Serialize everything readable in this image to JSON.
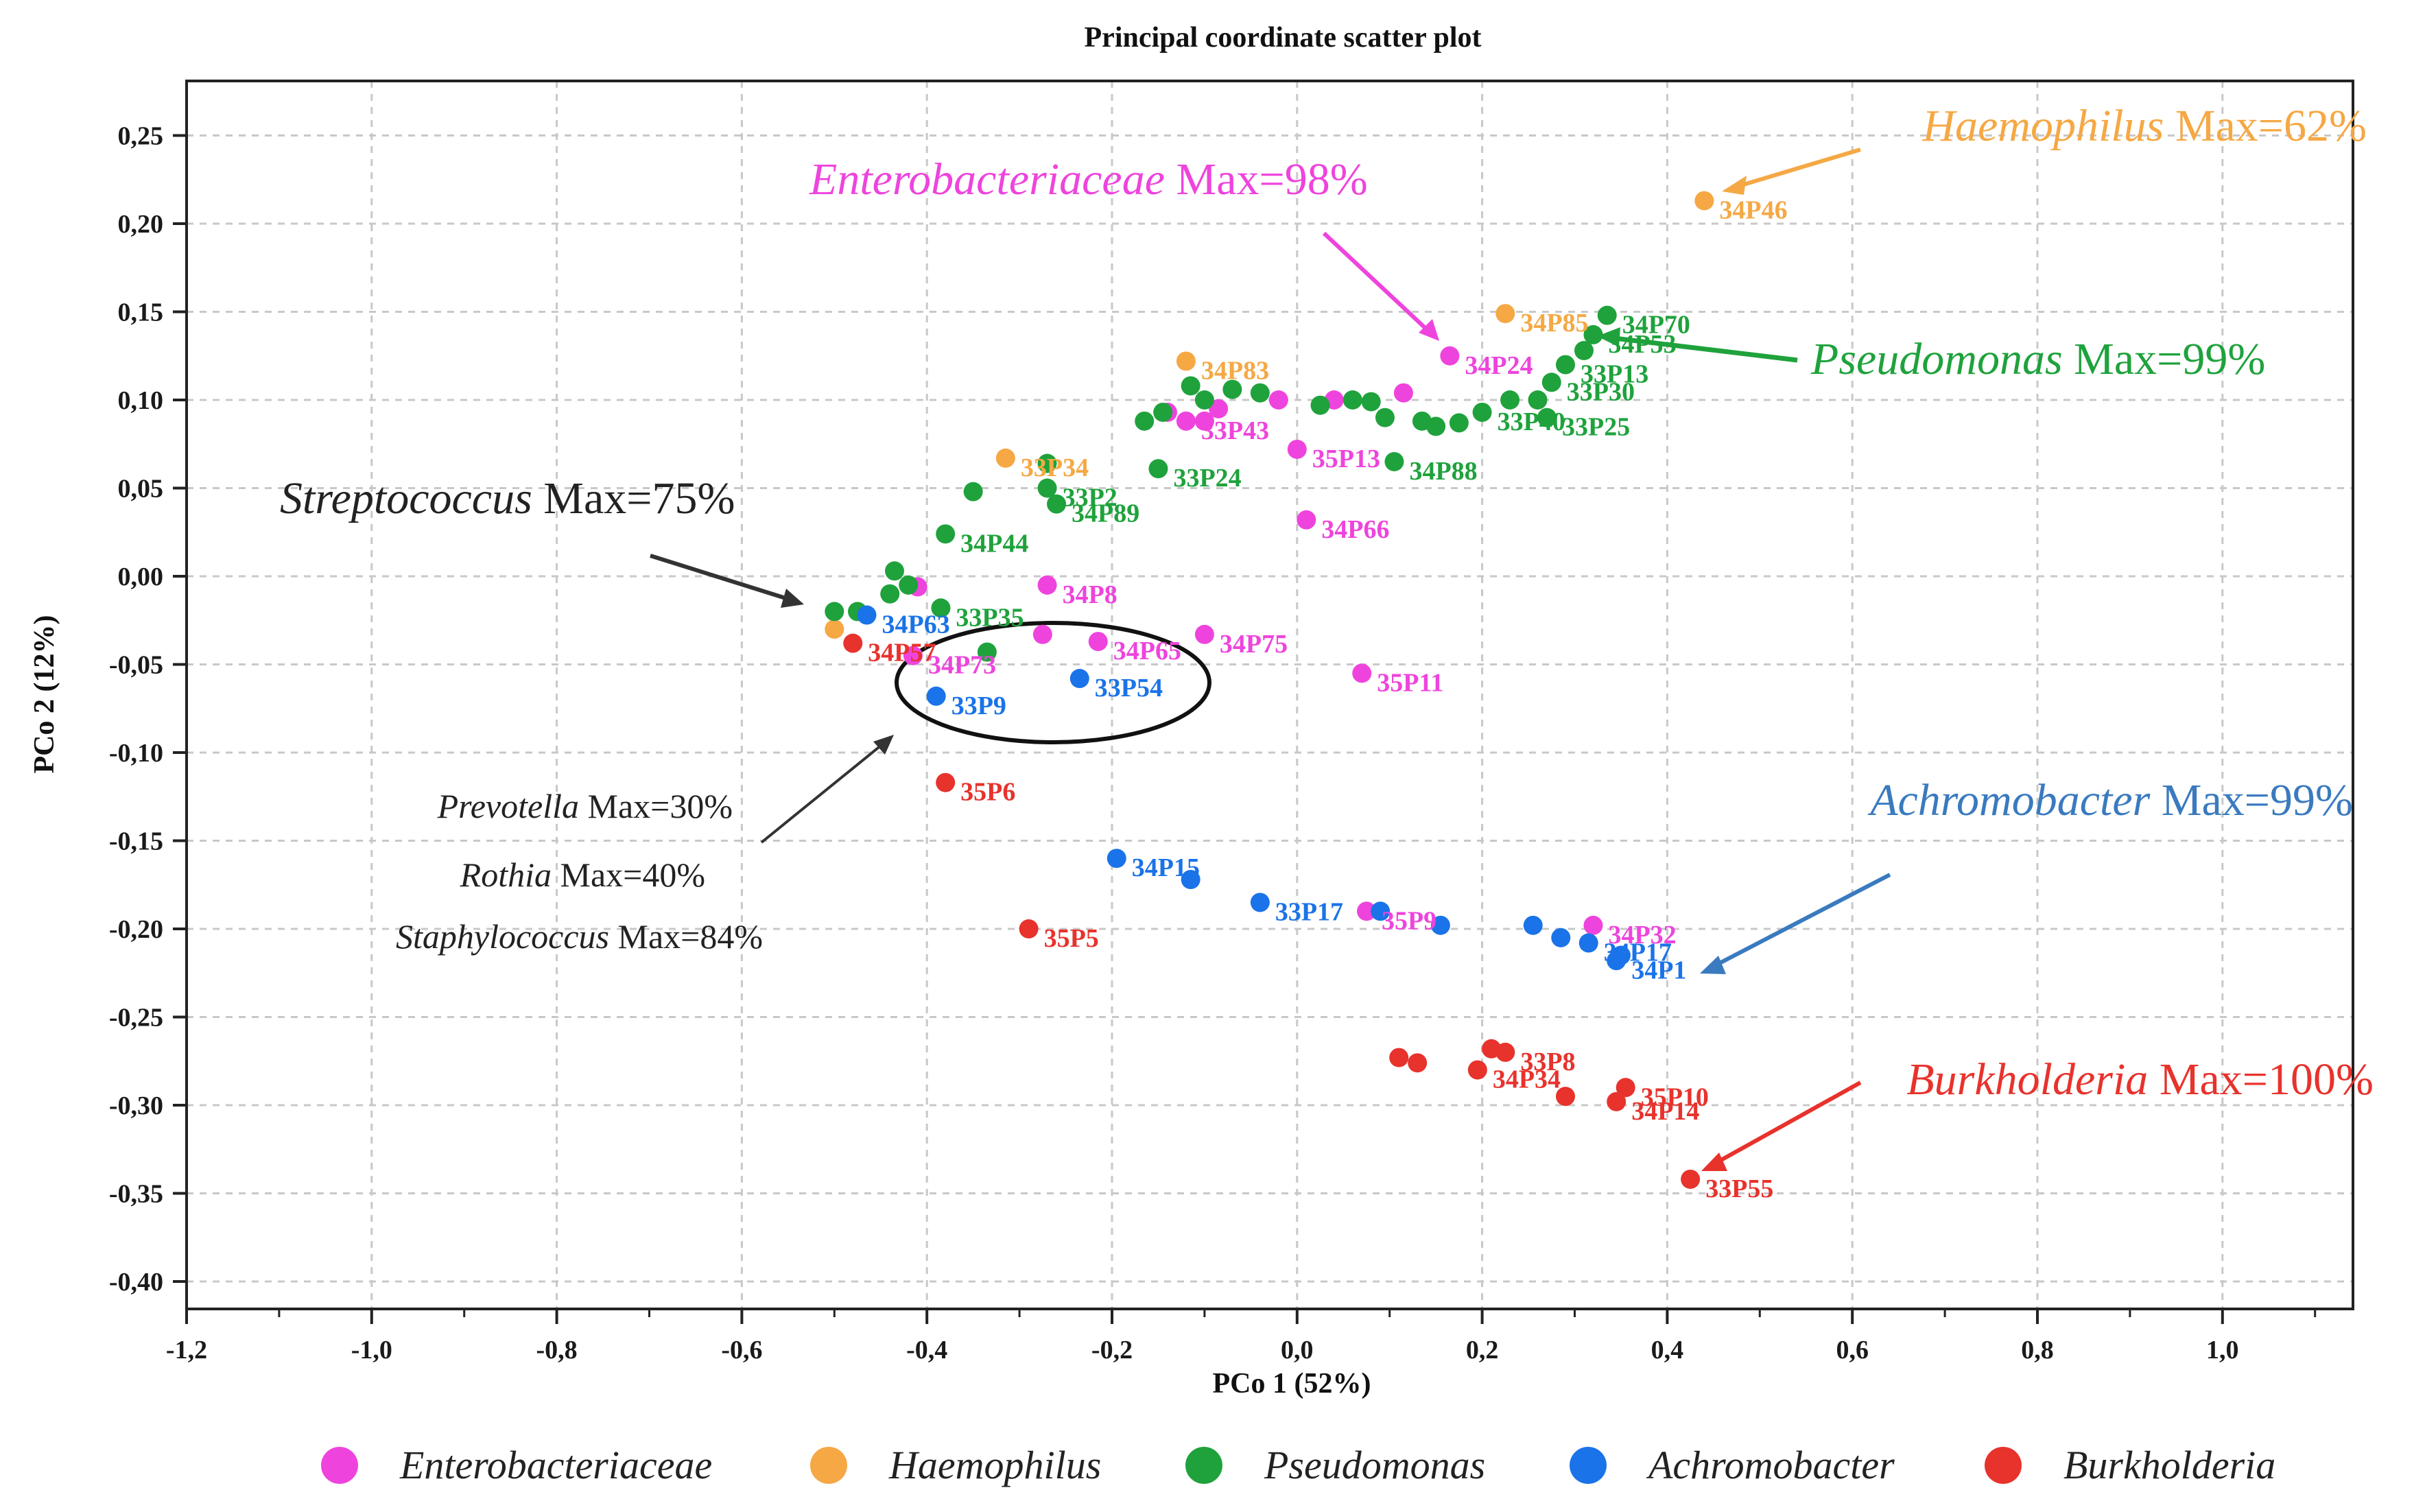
{
  "chart_data": {
    "type": "scatter",
    "title": "Principal coordinate scatter plot",
    "xlabel": "PCo 1 (52%)",
    "ylabel": "PCo 2 (12%)",
    "xlim": [
      -1.2,
      1.2
    ],
    "ylim": [
      -0.4,
      0.27
    ],
    "x_ticks": [
      -1.2,
      -1.0,
      -0.8,
      -0.6,
      -0.4,
      -0.2,
      0.0,
      0.2,
      0.4,
      0.6,
      0.8,
      1.0
    ],
    "x_tick_labels": [
      "-1,2",
      "-1,0",
      "-0,8",
      "-0,6",
      "-0,4",
      "-0,2",
      "0,0",
      "0,2",
      "0,4",
      "0,6",
      "0,8",
      "1,0"
    ],
    "y_ticks": [
      0.25,
      0.2,
      0.15,
      0.1,
      0.05,
      0.0,
      -0.05,
      -0.1,
      -0.15,
      -0.2,
      -0.25,
      -0.3,
      -0.35,
      -0.4
    ],
    "y_tick_labels": [
      "0,25",
      "0,20",
      "0,15",
      "0,10",
      "0,05",
      "0,00",
      "-0,05",
      "-0,10",
      "-0,15",
      "-0,20",
      "-0,25",
      "-0,30",
      "-0,35",
      "-0,40"
    ],
    "grid": true,
    "legend_position": "bottom",
    "series": [
      {
        "name": "Enterobacteriaceae",
        "color": "#ee44dd",
        "points": [
          {
            "x": 0.165,
            "y": 0.125,
            "label": "34P24"
          },
          {
            "x": -0.12,
            "y": 0.088,
            "label": "33P43"
          },
          {
            "x": -0.1,
            "y": 0.088,
            "label": ""
          },
          {
            "x": -0.085,
            "y": 0.095,
            "label": ""
          },
          {
            "x": -0.14,
            "y": 0.093,
            "label": ""
          },
          {
            "x": -0.02,
            "y": 0.1,
            "label": ""
          },
          {
            "x": 0.04,
            "y": 0.1,
            "label": ""
          },
          {
            "x": 0.115,
            "y": 0.104,
            "label": ""
          },
          {
            "x": 0.0,
            "y": 0.072,
            "label": "35P13"
          },
          {
            "x": 0.01,
            "y": 0.032,
            "label": "34P66"
          },
          {
            "x": -0.27,
            "y": -0.005,
            "label": "34P8"
          },
          {
            "x": -0.41,
            "y": -0.006,
            "label": ""
          },
          {
            "x": -0.275,
            "y": -0.033,
            "label": ""
          },
          {
            "x": -0.215,
            "y": -0.037,
            "label": "34P65"
          },
          {
            "x": -0.1,
            "y": -0.033,
            "label": "34P75"
          },
          {
            "x": -0.415,
            "y": -0.045,
            "label": "34P73"
          },
          {
            "x": 0.07,
            "y": -0.055,
            "label": "35P11"
          },
          {
            "x": 0.075,
            "y": -0.19,
            "label": "35P9"
          },
          {
            "x": 0.32,
            "y": -0.198,
            "label": "34P32"
          }
        ]
      },
      {
        "name": "Haemophilus",
        "color": "#f5a844",
        "points": [
          {
            "x": 0.44,
            "y": 0.213,
            "label": "34P46"
          },
          {
            "x": 0.225,
            "y": 0.149,
            "label": "34P85"
          },
          {
            "x": -0.12,
            "y": 0.122,
            "label": "34P83"
          },
          {
            "x": -0.315,
            "y": 0.067,
            "label": "33P34"
          },
          {
            "x": -0.5,
            "y": -0.03,
            "label": ""
          }
        ]
      },
      {
        "name": "Pseudomonas",
        "color": "#1fa23c",
        "points": [
          {
            "x": 0.335,
            "y": 0.148,
            "label": "34P70"
          },
          {
            "x": 0.32,
            "y": 0.137,
            "label": "34P53"
          },
          {
            "x": 0.31,
            "y": 0.128,
            "label": ""
          },
          {
            "x": 0.29,
            "y": 0.12,
            "label": "33P13"
          },
          {
            "x": 0.275,
            "y": 0.11,
            "label": "33P30"
          },
          {
            "x": 0.26,
            "y": 0.1,
            "label": ""
          },
          {
            "x": 0.27,
            "y": 0.09,
            "label": "33P25"
          },
          {
            "x": 0.23,
            "y": 0.1,
            "label": ""
          },
          {
            "x": 0.2,
            "y": 0.093,
            "label": "33P40"
          },
          {
            "x": 0.175,
            "y": 0.087,
            "label": ""
          },
          {
            "x": 0.15,
            "y": 0.085,
            "label": ""
          },
          {
            "x": 0.135,
            "y": 0.088,
            "label": ""
          },
          {
            "x": 0.105,
            "y": 0.065,
            "label": "34P88"
          },
          {
            "x": 0.095,
            "y": 0.09,
            "label": ""
          },
          {
            "x": 0.08,
            "y": 0.099,
            "label": ""
          },
          {
            "x": 0.06,
            "y": 0.1,
            "label": ""
          },
          {
            "x": 0.025,
            "y": 0.097,
            "label": ""
          },
          {
            "x": -0.04,
            "y": 0.104,
            "label": ""
          },
          {
            "x": -0.07,
            "y": 0.106,
            "label": ""
          },
          {
            "x": -0.1,
            "y": 0.1,
            "label": ""
          },
          {
            "x": -0.115,
            "y": 0.108,
            "label": ""
          },
          {
            "x": -0.145,
            "y": 0.093,
            "label": ""
          },
          {
            "x": -0.165,
            "y": 0.088,
            "label": ""
          },
          {
            "x": -0.15,
            "y": 0.061,
            "label": "33P24"
          },
          {
            "x": -0.27,
            "y": 0.064,
            "label": ""
          },
          {
            "x": -0.27,
            "y": 0.05,
            "label": "33P2"
          },
          {
            "x": -0.26,
            "y": 0.041,
            "label": "34P89"
          },
          {
            "x": -0.35,
            "y": 0.048,
            "label": ""
          },
          {
            "x": -0.38,
            "y": 0.024,
            "label": "34P44"
          },
          {
            "x": -0.435,
            "y": 0.003,
            "label": ""
          },
          {
            "x": -0.42,
            "y": -0.005,
            "label": ""
          },
          {
            "x": -0.44,
            "y": -0.01,
            "label": ""
          },
          {
            "x": -0.385,
            "y": -0.018,
            "label": "33P35"
          },
          {
            "x": -0.475,
            "y": -0.02,
            "label": ""
          },
          {
            "x": -0.5,
            "y": -0.02,
            "label": ""
          },
          {
            "x": -0.335,
            "y": -0.043,
            "label": ""
          }
        ]
      },
      {
        "name": "Achromobacter",
        "color": "#1a73e8",
        "points": [
          {
            "x": -0.465,
            "y": -0.022,
            "label": "34P63"
          },
          {
            "x": -0.235,
            "y": -0.058,
            "label": "33P54"
          },
          {
            "x": -0.39,
            "y": -0.068,
            "label": "33P9"
          },
          {
            "x": -0.195,
            "y": -0.16,
            "label": "34P15"
          },
          {
            "x": -0.115,
            "y": -0.172,
            "label": ""
          },
          {
            "x": -0.04,
            "y": -0.185,
            "label": "33P17"
          },
          {
            "x": 0.09,
            "y": -0.19,
            "label": ""
          },
          {
            "x": 0.155,
            "y": -0.198,
            "label": ""
          },
          {
            "x": 0.255,
            "y": -0.198,
            "label": ""
          },
          {
            "x": 0.285,
            "y": -0.205,
            "label": ""
          },
          {
            "x": 0.315,
            "y": -0.208,
            "label": "34P17"
          },
          {
            "x": 0.345,
            "y": -0.218,
            "label": "34P1"
          },
          {
            "x": 0.35,
            "y": -0.215,
            "label": ""
          }
        ]
      },
      {
        "name": "Burkholderia",
        "color": "#e8322c",
        "points": [
          {
            "x": -0.48,
            "y": -0.038,
            "label": "34P57"
          },
          {
            "x": -0.38,
            "y": -0.117,
            "label": "35P6"
          },
          {
            "x": -0.29,
            "y": -0.2,
            "label": "35P5"
          },
          {
            "x": 0.11,
            "y": -0.273,
            "label": ""
          },
          {
            "x": 0.13,
            "y": -0.276,
            "label": ""
          },
          {
            "x": 0.195,
            "y": -0.28,
            "label": "34P34"
          },
          {
            "x": 0.21,
            "y": -0.268,
            "label": ""
          },
          {
            "x": 0.225,
            "y": -0.27,
            "label": "33P8"
          },
          {
            "x": 0.29,
            "y": -0.295,
            "label": ""
          },
          {
            "x": 0.345,
            "y": -0.298,
            "label": "34P14"
          },
          {
            "x": 0.355,
            "y": -0.29,
            "label": "35P10"
          },
          {
            "x": 0.425,
            "y": -0.342,
            "label": "33P55"
          }
        ]
      }
    ],
    "annotations": [
      {
        "genus": "Enterobacteriaceae",
        "text": " Max=98%",
        "color": "#ee44dd"
      },
      {
        "genus": "Haemophilus",
        "text": " Max=62%",
        "color": "#f5a844"
      },
      {
        "genus": "Pseudomonas",
        "text": " Max=99%",
        "color": "#1fa23c"
      },
      {
        "genus": "Streptococcus",
        "text": " Max=75%",
        "color": "#222222"
      },
      {
        "genus": "Prevotella",
        "text": " Max=30%",
        "color": "#222222"
      },
      {
        "genus": "Rothia",
        "text": " Max=40%",
        "color": "#222222"
      },
      {
        "genus": "Staphylococcus",
        "text": " Max=84%",
        "color": "#222222"
      },
      {
        "genus": "Achromobacter",
        "text": " Max=99%",
        "color": "#3a7abf"
      },
      {
        "genus": "Burkholderia",
        "text": " Max=100%",
        "color": "#e8322c"
      }
    ]
  }
}
